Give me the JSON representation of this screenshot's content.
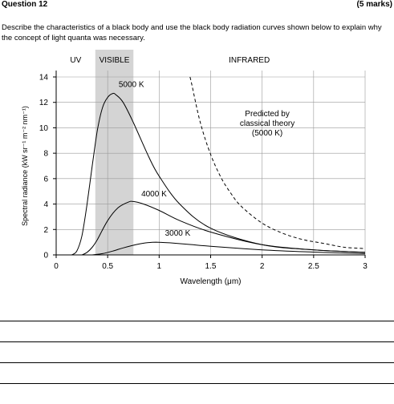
{
  "question": {
    "number_label": "Question 12",
    "marks_label": "(5 marks)",
    "prompt": "Describe the characteristics of a black body and use the black body radiation curves shown below to explain why the concept of light quanta was necessary."
  },
  "chart_data": {
    "type": "line",
    "xlabel": "Wavelength (μm)",
    "ylabel": "Spectral radiance (kW sr⁻¹ m⁻² nm⁻¹)",
    "xlim": [
      0,
      3
    ],
    "ylim": [
      0,
      14
    ],
    "x_ticks": [
      "0",
      "0.5",
      "1",
      "1.5",
      "2",
      "2.5",
      "3"
    ],
    "y_ticks": [
      "0",
      "2",
      "4",
      "6",
      "8",
      "10",
      "12",
      "14"
    ],
    "grid": true,
    "regions": [
      {
        "label": "UV",
        "range": [
          0,
          0.38
        ]
      },
      {
        "label": "VISIBLE",
        "range": [
          0.38,
          0.75
        ],
        "shaded": true
      },
      {
        "label": "INFRARED",
        "range": [
          0.75,
          3
        ]
      }
    ],
    "series": [
      {
        "name": "5000 K",
        "style": "solid",
        "x": [
          0.15,
          0.2,
          0.25,
          0.3,
          0.35,
          0.4,
          0.45,
          0.5,
          0.55,
          0.58,
          0.65,
          0.75,
          0.9,
          1.0,
          1.2,
          1.5,
          2.0,
          2.5,
          3.0
        ],
        "y": [
          0.0,
          0.3,
          1.5,
          4.0,
          7.0,
          9.8,
          11.6,
          12.4,
          12.7,
          12.6,
          12.0,
          10.4,
          7.7,
          6.2,
          4.0,
          2.1,
          0.8,
          0.4,
          0.2
        ]
      },
      {
        "name": "4000 K",
        "style": "solid",
        "x": [
          0.25,
          0.3,
          0.35,
          0.4,
          0.5,
          0.6,
          0.7,
          0.75,
          0.85,
          1.0,
          1.2,
          1.5,
          2.0,
          2.5,
          3.0
        ],
        "y": [
          0.0,
          0.2,
          0.6,
          1.2,
          2.7,
          3.7,
          4.15,
          4.2,
          4.0,
          3.5,
          2.7,
          1.8,
          0.8,
          0.4,
          0.2
        ]
      },
      {
        "name": "3000 K",
        "style": "solid",
        "x": [
          0.35,
          0.45,
          0.55,
          0.65,
          0.8,
          0.9,
          0.97,
          1.1,
          1.3,
          1.5,
          2.0,
          2.5,
          3.0
        ],
        "y": [
          0.0,
          0.1,
          0.3,
          0.55,
          0.85,
          0.97,
          1.0,
          0.95,
          0.82,
          0.68,
          0.4,
          0.22,
          0.1
        ]
      }
    ],
    "classical_curve": {
      "label_lines": [
        "Predicted by",
        "classical theory",
        "(5000 K)"
      ],
      "style": "dashed",
      "x": [
        1.3,
        1.32,
        1.4,
        1.5,
        1.6,
        1.7,
        1.8,
        2.0,
        2.2,
        2.4,
        2.6,
        2.8,
        3.0
      ],
      "y": [
        14.0,
        13.3,
        10.4,
        7.9,
        6.1,
        4.8,
        3.8,
        2.5,
        1.7,
        1.2,
        0.9,
        0.6,
        0.5
      ]
    }
  },
  "answer_lines": [
    "",
    "",
    "",
    ""
  ]
}
